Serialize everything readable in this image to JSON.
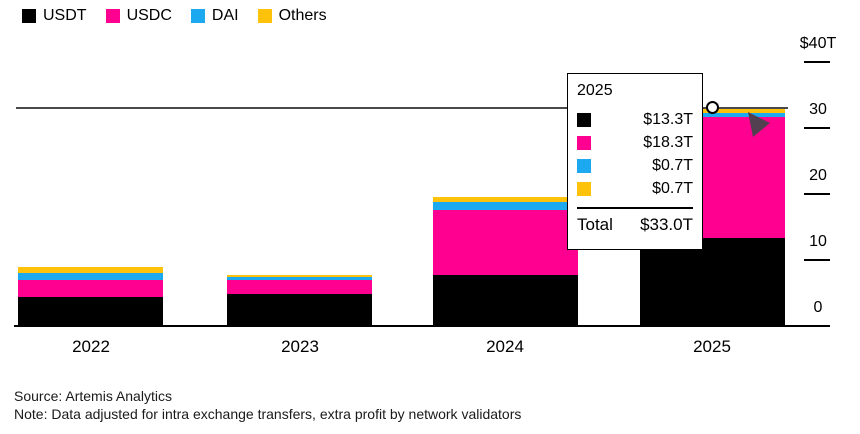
{
  "chart_data": {
    "type": "bar",
    "stacked": true,
    "title": "",
    "unit": "trillions of US dollars",
    "categories": [
      "2022",
      "2023",
      "2024",
      "2025"
    ],
    "series": [
      {
        "name": "USDT",
        "color": "#000000",
        "values": [
          4.4,
          4.8,
          7.7,
          13.3
        ]
      },
      {
        "name": "USDC",
        "color": "#FF0090",
        "values": [
          2.6,
          2.2,
          9.9,
          18.3
        ]
      },
      {
        "name": "DAI",
        "color": "#1CA9F0",
        "values": [
          1.1,
          0.4,
          1.2,
          0.7
        ]
      },
      {
        "name": "Others",
        "color": "#FFC20B",
        "values": [
          0.9,
          0.4,
          0.7,
          0.7
        ]
      }
    ],
    "totals": [
      9.0,
      7.8,
      19.5,
      33.0
    ],
    "ylim": [
      0,
      40
    ],
    "y_ticks": [
      0,
      10,
      20,
      30,
      40
    ],
    "grid": false,
    "legend_position": "top-left",
    "highlight": {
      "category": "2025",
      "total": 33.0,
      "crosshair_value": 33.0
    }
  },
  "legend": {
    "items": [
      {
        "label": "USDT",
        "color": "#000000"
      },
      {
        "label": "USDC",
        "color": "#FF0090"
      },
      {
        "label": "DAI",
        "color": "#1CA9F0"
      },
      {
        "label": "Others",
        "color": "#FFC20B"
      }
    ]
  },
  "y_axis": {
    "ticks": [
      {
        "label": "$40T",
        "value": 40
      },
      {
        "label": "30",
        "value": 30
      },
      {
        "label": "20",
        "value": 20
      },
      {
        "label": "10",
        "value": 10
      },
      {
        "label": "0",
        "value": 0
      }
    ]
  },
  "x_axis": {
    "labels": [
      "2022",
      "2023",
      "2024",
      "2025"
    ]
  },
  "tooltip": {
    "title": "2025",
    "rows": [
      {
        "series": "USDT",
        "color": "#000000",
        "value": "$13.3T"
      },
      {
        "series": "USDC",
        "color": "#FF0090",
        "value": "$18.3T"
      },
      {
        "series": "DAI",
        "color": "#1CA9F0",
        "value": "$0.7T"
      },
      {
        "series": "Others",
        "color": "#FFC20B",
        "value": "$0.7T"
      }
    ],
    "total_label": "Total",
    "total_value": "$33.0T"
  },
  "footer": {
    "source": "Source: Artemis Analytics",
    "note": "Note: Data adjusted for intra exchange transfers, extra profit by network validators"
  }
}
